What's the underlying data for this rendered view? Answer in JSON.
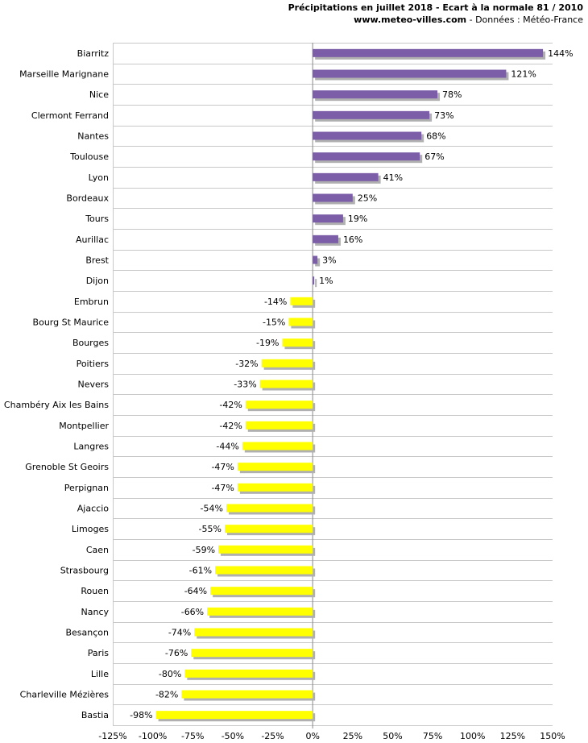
{
  "header": {
    "title": "Précipitations en juillet 2018 - Ecart à la normale 81 / 2010",
    "site": "www.meteo-villes.com",
    "source": " - Données : Météo-France"
  },
  "colors": {
    "positive": "#7b5ea7",
    "negative": "#ffff00",
    "grid": "#c8c8c8",
    "shadow": "#b0b0b0"
  },
  "chart_data": {
    "type": "bar",
    "orientation": "horizontal",
    "title": "Précipitations en juillet 2018 - Ecart à la normale 81 / 2010",
    "xlabel": "",
    "ylabel": "",
    "xlim": [
      -125,
      150
    ],
    "xticks": [
      -125,
      -100,
      -75,
      -50,
      -25,
      0,
      25,
      50,
      75,
      100,
      125,
      150
    ],
    "xtick_labels": [
      "-125%",
      "-100%",
      "-75%",
      "-50%",
      "-25%",
      "0%",
      "25%",
      "50%",
      "75%",
      "100%",
      "125%",
      "150%"
    ],
    "categories": [
      "Biarritz",
      "Marseille Marignane",
      "Nice",
      "Clermont Ferrand",
      "Nantes",
      "Toulouse",
      "Lyon",
      "Bordeaux",
      "Tours",
      "Aurillac",
      "Brest",
      "Dijon",
      "Embrun",
      "Bourg St Maurice",
      "Bourges",
      "Poitiers",
      "Nevers",
      "Chambéry Aix les Bains",
      "Montpellier",
      "Langres",
      "Grenoble St Geoirs",
      "Perpignan",
      "Ajaccio",
      "Limoges",
      "Caen",
      "Strasbourg",
      "Rouen",
      "Nancy",
      "Besançon",
      "Paris",
      "Lille",
      "Charleville Mézières",
      "Bastia"
    ],
    "values": [
      144,
      121,
      78,
      73,
      68,
      67,
      41,
      25,
      19,
      16,
      3,
      1,
      -14,
      -15,
      -19,
      -32,
      -33,
      -42,
      -42,
      -44,
      -47,
      -47,
      -54,
      -55,
      -59,
      -61,
      -64,
      -66,
      -74,
      -76,
      -80,
      -82,
      -98
    ],
    "labels": [
      "144%",
      "121%",
      "78%",
      "73%",
      "68%",
      "67%",
      "41%",
      "25%",
      "19%",
      "16%",
      "3%",
      "1%",
      "-14%",
      "-15%",
      "-19%",
      "-32%",
      "-33%",
      "-42%",
      "-42%",
      "-44%",
      "-47%",
      "-47%",
      "-54%",
      "-55%",
      "-59%",
      "-61%",
      "-64%",
      "-66%",
      "-74%",
      "-76%",
      "-80%",
      "-82%",
      "-98%"
    ],
    "grid": true
  }
}
